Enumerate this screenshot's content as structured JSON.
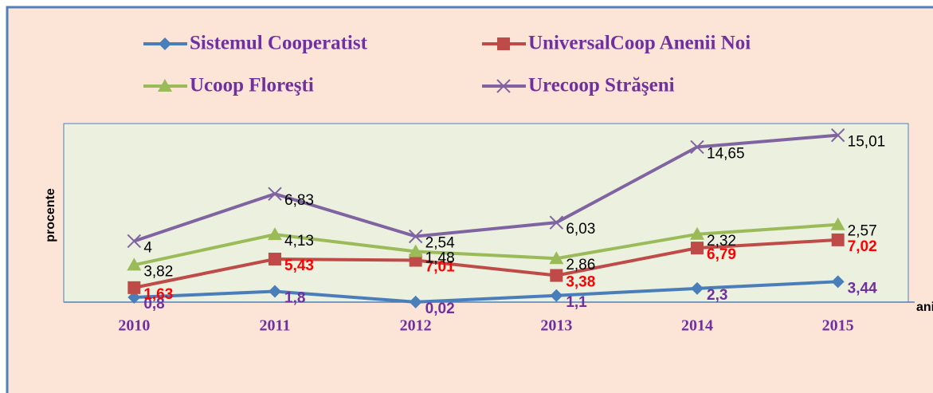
{
  "chart_data": {
    "type": "line",
    "stacked": true,
    "categories": [
      "2010",
      "2011",
      "2012",
      "2013",
      "2014",
      "2015"
    ],
    "y_label": "procente",
    "x_label": "anii",
    "ylim": [
      0,
      30
    ],
    "legend": "top",
    "series": [
      {
        "name": "Sistemul Cooperatist",
        "color": "#4a7ebb",
        "label_color": "#7030a0",
        "marker": "diamond",
        "values": [
          0.8,
          1.8,
          0.02,
          1.1,
          2.3,
          3.44
        ],
        "value_labels": [
          "0,8",
          "1,8",
          "0,02",
          "1,1",
          "2,3",
          "3,44"
        ]
      },
      {
        "name": "UniversalCoop Anenii Noi",
        "color": "#be4b48",
        "label_color": "#ff0000",
        "marker": "square",
        "values": [
          1.63,
          5.43,
          7.01,
          3.38,
          6.79,
          7.02
        ],
        "value_labels": [
          "1,63",
          "5,43",
          "7,01",
          "3,38",
          "6,79",
          "7,02"
        ]
      },
      {
        "name": "Ucoop Floreşti",
        "color": "#9bbb59",
        "label_color": "#000000",
        "marker": "triangle",
        "values": [
          3.82,
          4.13,
          1.48,
          2.86,
          2.32,
          2.57
        ],
        "value_labels": [
          "3,82",
          "4,13",
          "1,48",
          "2,86",
          "2,32",
          "2,57"
        ]
      },
      {
        "name": "Urecoop Străşeni",
        "color": "#8064a2",
        "label_color": "#000000",
        "marker": "x",
        "values": [
          4,
          6.83,
          2.54,
          6.03,
          14.65,
          15.01
        ],
        "value_labels": [
          "4",
          "6,83",
          "2,54",
          "6,03",
          "14,65",
          "15,01"
        ]
      }
    ]
  }
}
